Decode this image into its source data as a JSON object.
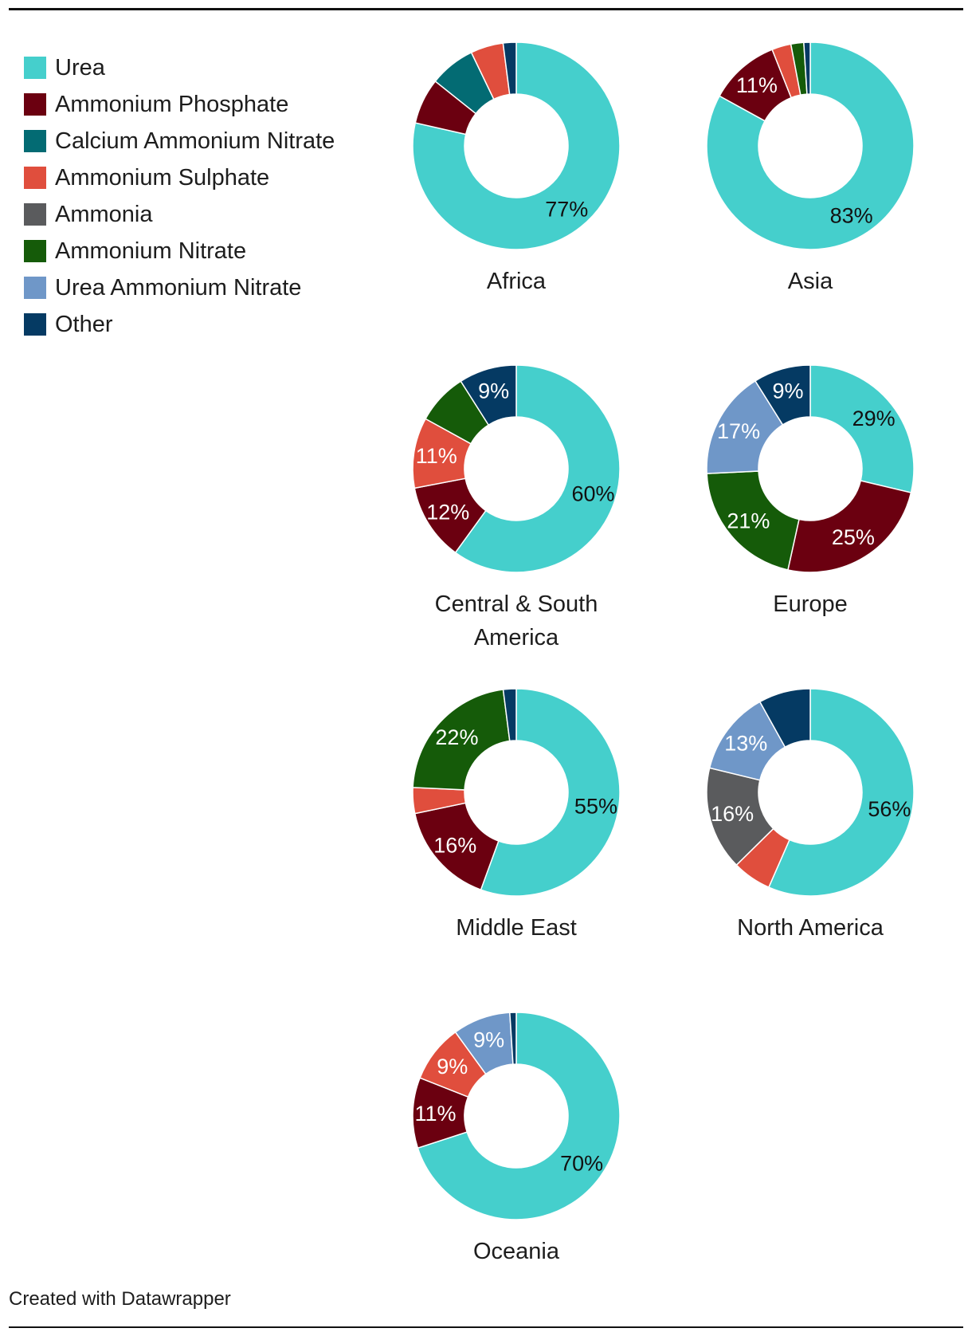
{
  "chart_data": {
    "type": "pie",
    "variant": "donut",
    "categories": [
      "Urea",
      "Ammonium Phosphate",
      "Calcium Ammonium Nitrate",
      "Ammonium Sulphate",
      "Ammonia",
      "Ammonium Nitrate",
      "Urea Ammonium Nitrate",
      "Other"
    ],
    "colors": [
      "#45cfcc",
      "#6b0010",
      "#036b73",
      "#e04e3d",
      "#5a5b5d",
      "#155b09",
      "#6f97c8",
      "#053a63"
    ],
    "legend_position": "top-left",
    "charts": [
      {
        "title": "Africa",
        "values": [
          77,
          7,
          7,
          5,
          0,
          0,
          0,
          2
        ],
        "labels": [
          "77%",
          "",
          "",
          "",
          "",
          "",
          "",
          ""
        ]
      },
      {
        "title": "Asia",
        "values": [
          83,
          11,
          0,
          3,
          0,
          2,
          0,
          1
        ],
        "labels": [
          "83%",
          "11%",
          "",
          "",
          "",
          "",
          "",
          ""
        ]
      },
      {
        "title": "Central & South America",
        "values": [
          60,
          12,
          0,
          11,
          0,
          8,
          0,
          9
        ],
        "labels": [
          "60%",
          "12%",
          "",
          "11%",
          "",
          "",
          "",
          "9%"
        ]
      },
      {
        "title": "Europe",
        "values": [
          29,
          25,
          0,
          0,
          0,
          21,
          17,
          9
        ],
        "labels": [
          "29%",
          "25%",
          "",
          "",
          "",
          "21%",
          "17%",
          "9%"
        ]
      },
      {
        "title": "Middle East",
        "values": [
          55,
          16,
          0,
          4,
          0,
          22,
          0,
          2
        ],
        "labels": [
          "55%",
          "16%",
          "",
          "",
          "",
          "22%",
          "",
          ""
        ]
      },
      {
        "title": "North America",
        "values": [
          56,
          0,
          0,
          6,
          16,
          0,
          13,
          8
        ],
        "labels": [
          "56%",
          "",
          "",
          "",
          "16%",
          "",
          "13%",
          ""
        ]
      },
      {
        "title": "Oceania",
        "values": [
          70,
          11,
          0,
          9,
          0,
          0,
          9,
          1
        ],
        "labels": [
          "70%",
          "11%",
          "",
          "9%",
          "",
          "",
          "9%",
          ""
        ]
      }
    ]
  },
  "credit": "Created with Datawrapper"
}
